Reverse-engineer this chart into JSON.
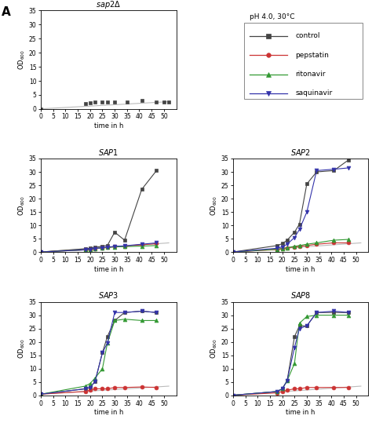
{
  "sap2delta": {
    "control": [
      [
        0,
        0.05
      ],
      [
        18,
        2.0
      ],
      [
        20,
        2.3
      ],
      [
        22,
        2.4
      ],
      [
        25,
        2.5
      ],
      [
        27,
        2.5
      ],
      [
        30,
        2.6
      ],
      [
        35,
        2.6
      ],
      [
        41,
        2.9
      ],
      [
        47,
        2.5
      ],
      [
        50,
        2.6
      ],
      [
        52,
        2.6
      ]
    ],
    "diag_line": [
      [
        0,
        0.05
      ],
      [
        52,
        2.6
      ]
    ]
  },
  "SAP1": {
    "control": [
      [
        0,
        0.1
      ],
      [
        18,
        1.3
      ],
      [
        20,
        1.5
      ],
      [
        22,
        1.8
      ],
      [
        25,
        2.3
      ],
      [
        27,
        2.5
      ],
      [
        30,
        7.5
      ],
      [
        34,
        4.5
      ],
      [
        41,
        23.5
      ],
      [
        47,
        30.5
      ]
    ],
    "pepstatin": [
      [
        0,
        0.1
      ],
      [
        18,
        0.9
      ],
      [
        20,
        1.1
      ],
      [
        22,
        1.4
      ],
      [
        25,
        1.6
      ],
      [
        27,
        1.8
      ],
      [
        30,
        2.1
      ],
      [
        34,
        2.3
      ],
      [
        41,
        2.8
      ],
      [
        47,
        3.2
      ]
    ],
    "ritonavir": [
      [
        0,
        0.1
      ],
      [
        18,
        0.9
      ],
      [
        20,
        1.1
      ],
      [
        22,
        1.4
      ],
      [
        25,
        1.6
      ],
      [
        27,
        1.8
      ],
      [
        30,
        2.0
      ],
      [
        34,
        2.1
      ],
      [
        41,
        2.3
      ],
      [
        47,
        2.5
      ]
    ],
    "saquinavir": [
      [
        0,
        0.1
      ],
      [
        18,
        0.9
      ],
      [
        20,
        1.1
      ],
      [
        22,
        1.4
      ],
      [
        25,
        1.7
      ],
      [
        27,
        1.9
      ],
      [
        30,
        2.2
      ],
      [
        34,
        2.4
      ],
      [
        41,
        3.0
      ],
      [
        47,
        3.5
      ]
    ],
    "diag_line": [
      [
        0,
        0.1
      ],
      [
        52,
        3.5
      ]
    ]
  },
  "SAP2": {
    "control": [
      [
        0,
        0.1
      ],
      [
        18,
        2.5
      ],
      [
        20,
        3.2
      ],
      [
        22,
        4.5
      ],
      [
        25,
        7.5
      ],
      [
        27,
        10.5
      ],
      [
        30,
        25.5
      ],
      [
        34,
        30.0
      ],
      [
        41,
        30.5
      ],
      [
        47,
        34.5
      ]
    ],
    "pepstatin": [
      [
        0,
        0.1
      ],
      [
        18,
        1.0
      ],
      [
        20,
        1.3
      ],
      [
        22,
        1.6
      ],
      [
        25,
        2.0
      ],
      [
        27,
        2.2
      ],
      [
        30,
        2.5
      ],
      [
        34,
        3.0
      ],
      [
        41,
        3.5
      ],
      [
        47,
        3.5
      ]
    ],
    "ritonavir": [
      [
        0,
        0.1
      ],
      [
        18,
        1.1
      ],
      [
        20,
        1.4
      ],
      [
        22,
        1.7
      ],
      [
        25,
        2.2
      ],
      [
        27,
        2.5
      ],
      [
        30,
        3.0
      ],
      [
        34,
        3.5
      ],
      [
        41,
        4.5
      ],
      [
        47,
        4.8
      ]
    ],
    "saquinavir": [
      [
        0,
        0.1
      ],
      [
        18,
        1.5
      ],
      [
        20,
        2.0
      ],
      [
        22,
        3.0
      ],
      [
        25,
        5.5
      ],
      [
        27,
        8.5
      ],
      [
        30,
        15.0
      ],
      [
        34,
        30.5
      ],
      [
        41,
        31.0
      ],
      [
        47,
        31.5
      ]
    ],
    "diag_line": [
      [
        0,
        0.1
      ],
      [
        52,
        3.5
      ]
    ]
  },
  "SAP3": {
    "control": [
      [
        0,
        0.5
      ],
      [
        18,
        2.5
      ],
      [
        20,
        3.0
      ],
      [
        22,
        5.2
      ],
      [
        25,
        16.0
      ],
      [
        27,
        22.0
      ],
      [
        30,
        28.0
      ],
      [
        34,
        31.0
      ],
      [
        41,
        31.5
      ],
      [
        47,
        31.0
      ]
    ],
    "pepstatin": [
      [
        0,
        0.5
      ],
      [
        18,
        1.5
      ],
      [
        20,
        2.0
      ],
      [
        22,
        2.5
      ],
      [
        25,
        2.5
      ],
      [
        27,
        2.5
      ],
      [
        30,
        3.0
      ],
      [
        34,
        3.0
      ],
      [
        41,
        3.2
      ],
      [
        47,
        3.0
      ]
    ],
    "ritonavir": [
      [
        0,
        0.5
      ],
      [
        18,
        3.5
      ],
      [
        20,
        4.5
      ],
      [
        22,
        6.5
      ],
      [
        25,
        10.0
      ],
      [
        27,
        19.5
      ],
      [
        30,
        28.0
      ],
      [
        34,
        28.5
      ],
      [
        41,
        28.0
      ],
      [
        47,
        28.0
      ]
    ],
    "saquinavir": [
      [
        0,
        0.5
      ],
      [
        18,
        2.5
      ],
      [
        20,
        3.0
      ],
      [
        22,
        5.2
      ],
      [
        25,
        16.0
      ],
      [
        27,
        19.5
      ],
      [
        30,
        31.0
      ],
      [
        34,
        31.0
      ],
      [
        41,
        31.5
      ],
      [
        47,
        31.0
      ]
    ],
    "diag_line": [
      [
        0,
        0.5
      ],
      [
        52,
        3.5
      ]
    ]
  },
  "SAP8": {
    "control": [
      [
        0,
        0.1
      ],
      [
        18,
        1.5
      ],
      [
        20,
        2.5
      ],
      [
        22,
        5.5
      ],
      [
        25,
        22.0
      ],
      [
        27,
        26.0
      ],
      [
        30,
        26.0
      ],
      [
        34,
        31.0
      ],
      [
        41,
        31.0
      ],
      [
        47,
        31.0
      ]
    ],
    "pepstatin": [
      [
        0,
        0.1
      ],
      [
        18,
        1.0
      ],
      [
        20,
        1.5
      ],
      [
        22,
        2.0
      ],
      [
        25,
        2.5
      ],
      [
        27,
        2.5
      ],
      [
        30,
        3.0
      ],
      [
        34,
        3.0
      ],
      [
        41,
        3.0
      ],
      [
        47,
        3.0
      ]
    ],
    "ritonavir": [
      [
        0,
        0.1
      ],
      [
        18,
        1.5
      ],
      [
        20,
        2.5
      ],
      [
        22,
        5.5
      ],
      [
        25,
        12.0
      ],
      [
        27,
        27.0
      ],
      [
        30,
        29.5
      ],
      [
        34,
        30.0
      ],
      [
        41,
        30.0
      ],
      [
        47,
        30.0
      ]
    ],
    "saquinavir": [
      [
        0,
        0.1
      ],
      [
        18,
        1.5
      ],
      [
        20,
        2.5
      ],
      [
        22,
        5.5
      ],
      [
        25,
        18.0
      ],
      [
        27,
        25.0
      ],
      [
        30,
        26.0
      ],
      [
        34,
        31.0
      ],
      [
        41,
        31.5
      ],
      [
        47,
        31.0
      ]
    ],
    "diag_line": [
      [
        0,
        0.1
      ],
      [
        52,
        3.5
      ]
    ]
  },
  "colors": {
    "control": "#444444",
    "pepstatin": "#CC3333",
    "ritonavir": "#339933",
    "saquinavir": "#3333AA"
  },
  "diag_color": "#BBBBBB",
  "markers": {
    "control": "s",
    "pepstatin": "o",
    "ritonavir": "^",
    "saquinavir": "v"
  },
  "ylim": [
    0,
    35
  ],
  "xlim": [
    0,
    55
  ],
  "xticks": [
    0,
    5,
    10,
    15,
    20,
    25,
    30,
    35,
    40,
    45,
    50
  ],
  "yticks": [
    0,
    5,
    10,
    15,
    20,
    25,
    30,
    35
  ],
  "xlabel": "time in h",
  "ylabel": "OD$_{600}$",
  "legend_title": "pH 4.0, 30°C",
  "legend_keys": [
    "control",
    "pepstatin",
    "ritonavir",
    "saquinavir"
  ],
  "panel_label": "A"
}
